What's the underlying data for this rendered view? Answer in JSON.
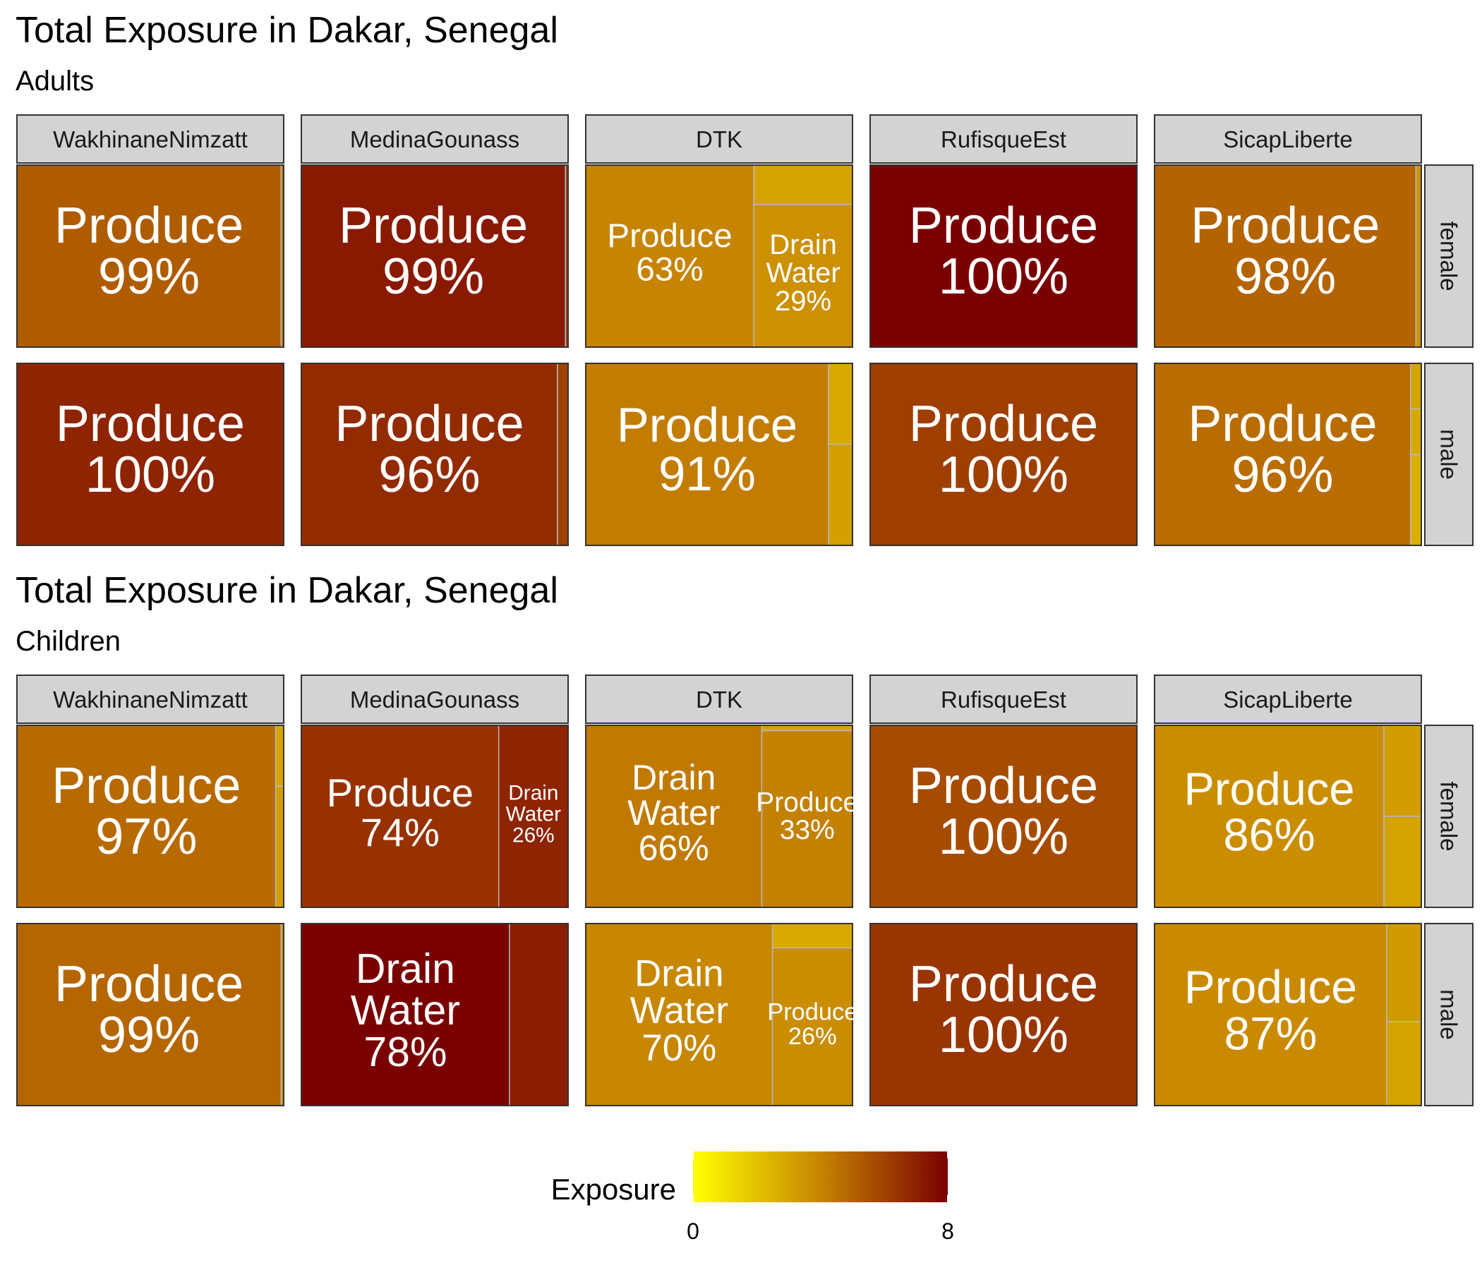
{
  "chart_data": [
    {
      "type": "treemap",
      "title": "Total Exposure in Dakar, Senegal",
      "subtitle": "Adults",
      "columns": [
        "WakhinaneNimzatt",
        "MedinaGounass",
        "DTK",
        "RufisqueEst",
        "SicapLiberte"
      ],
      "rows": [
        "female",
        "male"
      ],
      "panels": [
        {
          "column": "WakhinaneNimzatt",
          "row": "female",
          "tiles": [
            {
              "label": "Produce",
              "percent_label": "99%",
              "share": 0.99,
              "exposure": 5.2
            },
            {
              "label": "",
              "share": 0.01,
              "exposure": 4.5
            }
          ]
        },
        {
          "column": "MedinaGounass",
          "row": "female",
          "tiles": [
            {
              "label": "Produce",
              "percent_label": "99%",
              "share": 0.99,
              "exposure": 7.2
            },
            {
              "label": "",
              "share": 0.01,
              "exposure": 6.0
            }
          ]
        },
        {
          "column": "DTK",
          "row": "female",
          "tiles": [
            {
              "label": "Produce",
              "percent_label": "63%",
              "share": 0.63,
              "exposure": 4.0
            },
            {
              "label": "Drain Water",
              "percent_label": "29%",
              "share": 0.29,
              "exposure": 3.6
            },
            {
              "label": "",
              "share": 0.08,
              "exposure": 3.0
            }
          ]
        },
        {
          "column": "RufisqueEst",
          "row": "female",
          "tiles": [
            {
              "label": "Produce",
              "percent_label": "100%",
              "share": 1.0,
              "exposure": 8.0
            }
          ]
        },
        {
          "column": "SicapLiberte",
          "row": "female",
          "tiles": [
            {
              "label": "Produce",
              "percent_label": "98%",
              "share": 0.98,
              "exposure": 5.0
            },
            {
              "label": "",
              "share": 0.02,
              "exposure": 3.5
            }
          ]
        },
        {
          "column": "WakhinaneNimzatt",
          "row": "male",
          "tiles": [
            {
              "label": "Produce",
              "percent_label": "100%",
              "share": 1.0,
              "exposure": 6.9
            }
          ]
        },
        {
          "column": "MedinaGounass",
          "row": "male",
          "tiles": [
            {
              "label": "Produce",
              "percent_label": "96%",
              "share": 0.96,
              "exposure": 6.7
            },
            {
              "label": "",
              "share": 0.04,
              "exposure": 6.0
            }
          ]
        },
        {
          "column": "DTK",
          "row": "male",
          "tiles": [
            {
              "label": "Produce",
              "percent_label": "91%",
              "share": 0.91,
              "exposure": 4.2
            },
            {
              "label": "",
              "share": 0.05,
              "exposure": 3.1
            },
            {
              "label": "",
              "share": 0.04,
              "exposure": 2.8
            }
          ]
        },
        {
          "column": "RufisqueEst",
          "row": "male",
          "tiles": [
            {
              "label": "Produce",
              "percent_label": "100%",
              "share": 1.0,
              "exposure": 6.1
            }
          ]
        },
        {
          "column": "SicapLiberte",
          "row": "male",
          "tiles": [
            {
              "label": "Produce",
              "percent_label": "96%",
              "share": 0.96,
              "exposure": 4.7
            },
            {
              "label": "",
              "share": 0.02,
              "exposure": 2.6
            },
            {
              "label": "",
              "share": 0.01,
              "exposure": 2.8
            },
            {
              "label": "",
              "share": 0.01,
              "exposure": 3.0
            }
          ]
        }
      ]
    },
    {
      "type": "treemap",
      "title": "Total Exposure in Dakar, Senegal",
      "subtitle": "Children",
      "columns": [
        "WakhinaneNimzatt",
        "MedinaGounass",
        "DTK",
        "RufisqueEst",
        "SicapLiberte"
      ],
      "rows": [
        "female",
        "male"
      ],
      "panels": [
        {
          "column": "WakhinaneNimzatt",
          "row": "female",
          "tiles": [
            {
              "label": "Produce",
              "percent_label": "97%",
              "share": 0.97,
              "exposure": 4.8
            },
            {
              "label": "",
              "share": 0.02,
              "exposure": 3.2
            },
            {
              "label": "",
              "share": 0.01,
              "exposure": 3.0
            }
          ]
        },
        {
          "column": "MedinaGounass",
          "row": "female",
          "tiles": [
            {
              "label": "Produce",
              "percent_label": "74%",
              "share": 0.74,
              "exposure": 6.5
            },
            {
              "label": "Drain Water",
              "percent_label": "26%",
              "share": 0.26,
              "exposure": 6.9
            }
          ]
        },
        {
          "column": "DTK",
          "row": "female",
          "tiles": [
            {
              "label": "Drain Water",
              "percent_label": "66%",
              "share": 0.66,
              "exposure": 4.3
            },
            {
              "label": "Produce",
              "percent_label": "33%",
              "share": 0.33,
              "exposure": 4.1
            },
            {
              "label": "",
              "share": 0.01,
              "exposure": 3.0
            }
          ]
        },
        {
          "column": "RufisqueEst",
          "row": "female",
          "tiles": [
            {
              "label": "Produce",
              "percent_label": "100%",
              "share": 1.0,
              "exposure": 5.7
            }
          ]
        },
        {
          "column": "SicapLiberte",
          "row": "female",
          "tiles": [
            {
              "label": "Produce",
              "percent_label": "86%",
              "share": 0.86,
              "exposure": 3.7
            },
            {
              "label": "",
              "share": 0.07,
              "exposure": 3.0
            },
            {
              "label": "",
              "share": 0.07,
              "exposure": 3.2
            }
          ]
        },
        {
          "column": "WakhinaneNimzatt",
          "row": "male",
          "tiles": [
            {
              "label": "Produce",
              "percent_label": "99%",
              "share": 0.99,
              "exposure": 4.9
            },
            {
              "label": "",
              "share": 0.01,
              "exposure": 3.4
            }
          ]
        },
        {
          "column": "MedinaGounass",
          "row": "male",
          "tiles": [
            {
              "label": "Drain Water",
              "percent_label": "78%",
              "share": 0.78,
              "exposure": 8.0
            },
            {
              "label": "",
              "share": 0.22,
              "exposure": 7.1
            }
          ]
        },
        {
          "column": "DTK",
          "row": "male",
          "tiles": [
            {
              "label": "Drain Water",
              "percent_label": "70%",
              "share": 0.7,
              "exposure": 3.9
            },
            {
              "label": "Produce",
              "percent_label": "26%",
              "share": 0.26,
              "exposure": 3.7
            },
            {
              "label": "",
              "share": 0.04,
              "exposure": 2.8
            }
          ]
        },
        {
          "column": "RufisqueEst",
          "row": "male",
          "tiles": [
            {
              "label": "Produce",
              "percent_label": "100%",
              "share": 1.0,
              "exposure": 6.4
            }
          ]
        },
        {
          "column": "SicapLiberte",
          "row": "male",
          "tiles": [
            {
              "label": "Produce",
              "percent_label": "87%",
              "share": 0.87,
              "exposure": 3.8
            },
            {
              "label": "",
              "share": 0.06,
              "exposure": 3.0
            },
            {
              "label": "",
              "share": 0.07,
              "exposure": 3.3
            }
          ]
        }
      ]
    }
  ],
  "legend": {
    "title": "Exposure",
    "min": 0,
    "max": 8,
    "tick_labels": [
      "0",
      "8"
    ],
    "colors": [
      "#ffff00",
      "#c68400",
      "#7a0000"
    ]
  }
}
